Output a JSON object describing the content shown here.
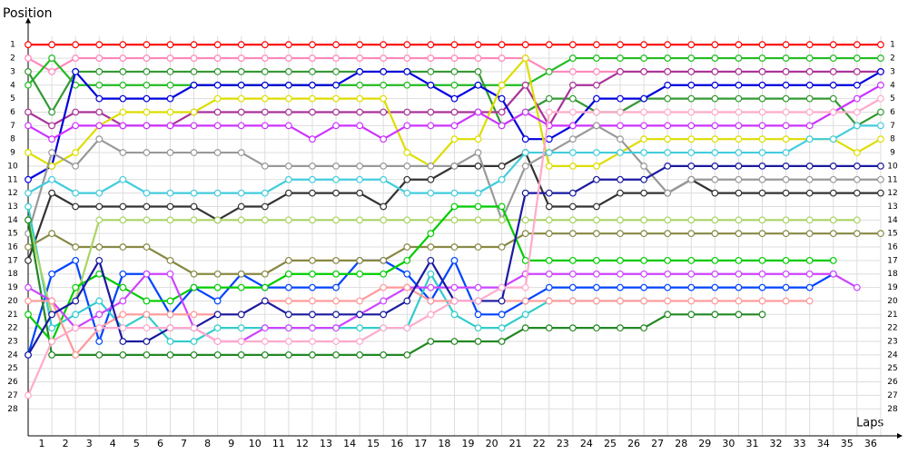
{
  "chart_data": {
    "type": "line",
    "y_label": "Position",
    "x_label": "Laps",
    "x": [
      0,
      1,
      2,
      3,
      4,
      5,
      6,
      7,
      8,
      9,
      10,
      11,
      12,
      13,
      14,
      15,
      16,
      17,
      18,
      19,
      20,
      21,
      22,
      23,
      24,
      25,
      26,
      27,
      28,
      29,
      30,
      31,
      32,
      33,
      34,
      35,
      36
    ],
    "xlim": [
      0,
      37
    ],
    "xticks": [
      1,
      2,
      3,
      4,
      5,
      6,
      7,
      8,
      9,
      10,
      11,
      12,
      13,
      14,
      15,
      16,
      17,
      18,
      19,
      20,
      21,
      22,
      23,
      24,
      25,
      26,
      27,
      28,
      29,
      30,
      31,
      32,
      33,
      34,
      35,
      36
    ],
    "ylim": [
      30,
      -1
    ],
    "yticks": [
      1,
      2,
      3,
      4,
      5,
      6,
      7,
      8,
      9,
      10,
      11,
      12,
      13,
      14,
      15,
      16,
      17,
      18,
      19,
      20,
      21,
      22,
      23,
      24,
      25,
      26,
      27,
      28
    ],
    "grid": true,
    "series": [
      {
        "color": "#ff0000",
        "values": [
          1,
          1,
          1,
          1,
          1,
          1,
          1,
          1,
          1,
          1,
          1,
          1,
          1,
          1,
          1,
          1,
          1,
          1,
          1,
          1,
          1,
          1,
          1,
          1,
          1,
          1,
          1,
          1,
          1,
          1,
          1,
          1,
          1,
          1,
          1,
          1,
          1
        ]
      },
      {
        "color": "#ff88bb",
        "values": [
          2,
          3,
          2,
          2,
          2,
          2,
          2,
          2,
          2,
          2,
          2,
          2,
          2,
          2,
          2,
          2,
          2,
          2,
          2,
          2,
          2,
          2,
          3,
          3,
          3,
          3,
          3,
          3,
          3,
          3,
          3,
          3,
          3,
          3,
          3,
          3,
          3
        ]
      },
      {
        "color": "#22bb22",
        "values": [
          4,
          2,
          4,
          4,
          4,
          4,
          4,
          4,
          4,
          4,
          4,
          4,
          4,
          4,
          4,
          4,
          4,
          4,
          4,
          4,
          4,
          4,
          3,
          2,
          2,
          2,
          2,
          2,
          2,
          2,
          2,
          2,
          2,
          2,
          2,
          2,
          2
        ]
      },
      {
        "color": "#339933",
        "values": [
          3,
          6,
          3,
          3,
          3,
          3,
          3,
          3,
          3,
          3,
          3,
          3,
          3,
          3,
          3,
          3,
          3,
          3,
          3,
          3,
          7,
          6,
          5,
          5,
          6,
          6,
          5,
          5,
          5,
          5,
          5,
          5,
          5,
          5,
          5,
          7,
          6
        ]
      },
      {
        "color": "#aa3399",
        "values": [
          6,
          7,
          6,
          6,
          7,
          7,
          7,
          6,
          6,
          6,
          6,
          6,
          6,
          6,
          6,
          6,
          6,
          6,
          6,
          6,
          6,
          4,
          7,
          4,
          4,
          3,
          3,
          3,
          3,
          3,
          3,
          3,
          3,
          3,
          3,
          3,
          3
        ]
      },
      {
        "color": "#0000dd",
        "values": [
          11,
          10,
          3,
          5,
          5,
          5,
          5,
          4,
          4,
          4,
          4,
          4,
          4,
          4,
          3,
          3,
          3,
          4,
          5,
          4,
          5,
          8,
          8,
          7,
          5,
          5,
          5,
          4,
          4,
          4,
          4,
          4,
          4,
          4,
          4,
          4,
          3
        ]
      },
      {
        "color": "#dddd00",
        "values": [
          9,
          10,
          9,
          7,
          6,
          6,
          6,
          6,
          5,
          5,
          5,
          5,
          5,
          5,
          5,
          5,
          9,
          10,
          8,
          8,
          4,
          2,
          10,
          10,
          10,
          9,
          8,
          8,
          8,
          8,
          8,
          8,
          8,
          8,
          8,
          9,
          8
        ]
      },
      {
        "color": "#cc33ff",
        "values": [
          7,
          8,
          7,
          7,
          7,
          7,
          7,
          7,
          7,
          7,
          7,
          7,
          8,
          7,
          7,
          8,
          7,
          7,
          7,
          6,
          7,
          6,
          7,
          7,
          7,
          7,
          7,
          7,
          7,
          7,
          7,
          7,
          7,
          7,
          6,
          5,
          4
        ]
      },
      {
        "color": "#333333",
        "values": [
          17,
          12,
          13,
          13,
          13,
          13,
          13,
          13,
          14,
          13,
          13,
          12,
          12,
          12,
          12,
          13,
          11,
          11,
          10,
          10,
          10,
          9,
          13,
          13,
          13,
          12,
          12,
          12,
          11,
          12,
          12,
          12,
          12,
          12,
          12,
          12,
          12
        ]
      },
      {
        "color": "#999999",
        "values": [
          15,
          9,
          10,
          8,
          9,
          9,
          9,
          9,
          9,
          9,
          10,
          10,
          10,
          10,
          10,
          10,
          10,
          10,
          10,
          9,
          14,
          10,
          9,
          8,
          7,
          8,
          10,
          12,
          11,
          11,
          11,
          11,
          11,
          11,
          11,
          11,
          11
        ]
      },
      {
        "color": "#0044ff",
        "values": [
          24,
          18,
          17,
          23,
          18,
          18,
          21,
          19,
          20,
          18,
          19,
          19,
          19,
          19,
          17,
          17,
          18,
          20,
          17,
          21,
          21,
          20,
          19,
          19,
          19,
          19,
          19,
          19,
          19,
          19,
          19,
          19,
          19,
          19,
          18,
          null,
          null
        ]
      },
      {
        "color": "#33cccc",
        "values": [
          13,
          22,
          21,
          20,
          22,
          21,
          23,
          23,
          22,
          22,
          22,
          22,
          22,
          22,
          22,
          22,
          22,
          18,
          21,
          22,
          22,
          21,
          20,
          20,
          20,
          20,
          20,
          null,
          null,
          null,
          null,
          null,
          null,
          null,
          null,
          null,
          null
        ]
      },
      {
        "color": "#888844",
        "values": [
          16,
          15,
          16,
          16,
          16,
          16,
          17,
          18,
          18,
          18,
          18,
          17,
          17,
          17,
          17,
          17,
          16,
          16,
          16,
          16,
          16,
          15,
          15,
          15,
          15,
          15,
          15,
          15,
          15,
          15,
          15,
          15,
          15,
          15,
          15,
          15,
          15
        ]
      },
      {
        "color": "#aad466",
        "values": [
          14,
          21,
          20,
          14,
          14,
          14,
          14,
          14,
          14,
          14,
          14,
          14,
          14,
          14,
          14,
          14,
          14,
          14,
          14,
          14,
          14,
          14,
          14,
          14,
          14,
          14,
          14,
          14,
          14,
          14,
          14,
          14,
          14,
          14,
          14,
          14,
          null
        ]
      },
      {
        "color": "#228822",
        "values": [
          14,
          24,
          24,
          24,
          24,
          24,
          24,
          24,
          24,
          24,
          24,
          24,
          24,
          24,
          24,
          24,
          24,
          23,
          23,
          23,
          23,
          22,
          22,
          22,
          22,
          22,
          22,
          21,
          21,
          21,
          21,
          21,
          null,
          null,
          null,
          null,
          null
        ]
      },
      {
        "color": "#00cc00",
        "values": [
          21,
          23,
          19,
          18,
          19,
          20,
          20,
          19,
          19,
          19,
          19,
          18,
          18,
          18,
          18,
          18,
          17,
          15,
          13,
          13,
          13,
          17,
          17,
          17,
          17,
          17,
          17,
          17,
          17,
          17,
          17,
          17,
          17,
          17,
          17,
          null,
          null
        ]
      },
      {
        "color": "#cc44ff",
        "values": [
          19,
          20,
          22,
          21,
          20,
          18,
          18,
          22,
          23,
          23,
          22,
          22,
          22,
          22,
          21,
          20,
          19,
          19,
          19,
          19,
          19,
          18,
          18,
          18,
          18,
          18,
          18,
          18,
          18,
          18,
          18,
          18,
          18,
          18,
          18,
          19,
          null
        ]
      },
      {
        "color": "#ff9999",
        "values": [
          20,
          20,
          24,
          22,
          21,
          21,
          21,
          21,
          21,
          21,
          20,
          20,
          20,
          20,
          20,
          19,
          19,
          20,
          20,
          20,
          20,
          20,
          20,
          20,
          20,
          20,
          20,
          20,
          20,
          20,
          20,
          20,
          20,
          20,
          null,
          null,
          null
        ]
      },
      {
        "color": "#44ccdd",
        "values": [
          12,
          11,
          12,
          12,
          11,
          12,
          12,
          12,
          12,
          12,
          12,
          11,
          11,
          11,
          11,
          11,
          12,
          12,
          12,
          12,
          11,
          9,
          9,
          9,
          9,
          9,
          9,
          9,
          9,
          9,
          9,
          9,
          9,
          8,
          8,
          7,
          7
        ]
      },
      {
        "color": "#1a1aa0",
        "values": [
          24,
          21,
          20,
          17,
          23,
          23,
          22,
          22,
          21,
          21,
          20,
          21,
          21,
          21,
          21,
          21,
          20,
          17,
          20,
          20,
          20,
          12,
          12,
          12,
          11,
          11,
          11,
          10,
          10,
          10,
          10,
          10,
          10,
          10,
          10,
          10,
          10
        ]
      },
      {
        "color": "#ffaacc",
        "values": [
          27,
          23,
          22,
          22,
          22,
          22,
          22,
          22,
          23,
          23,
          23,
          23,
          23,
          23,
          23,
          22,
          22,
          21,
          20,
          20,
          19,
          19,
          6,
          6,
          6,
          6,
          6,
          6,
          6,
          6,
          6,
          6,
          6,
          6,
          6,
          6,
          5
        ]
      }
    ]
  }
}
